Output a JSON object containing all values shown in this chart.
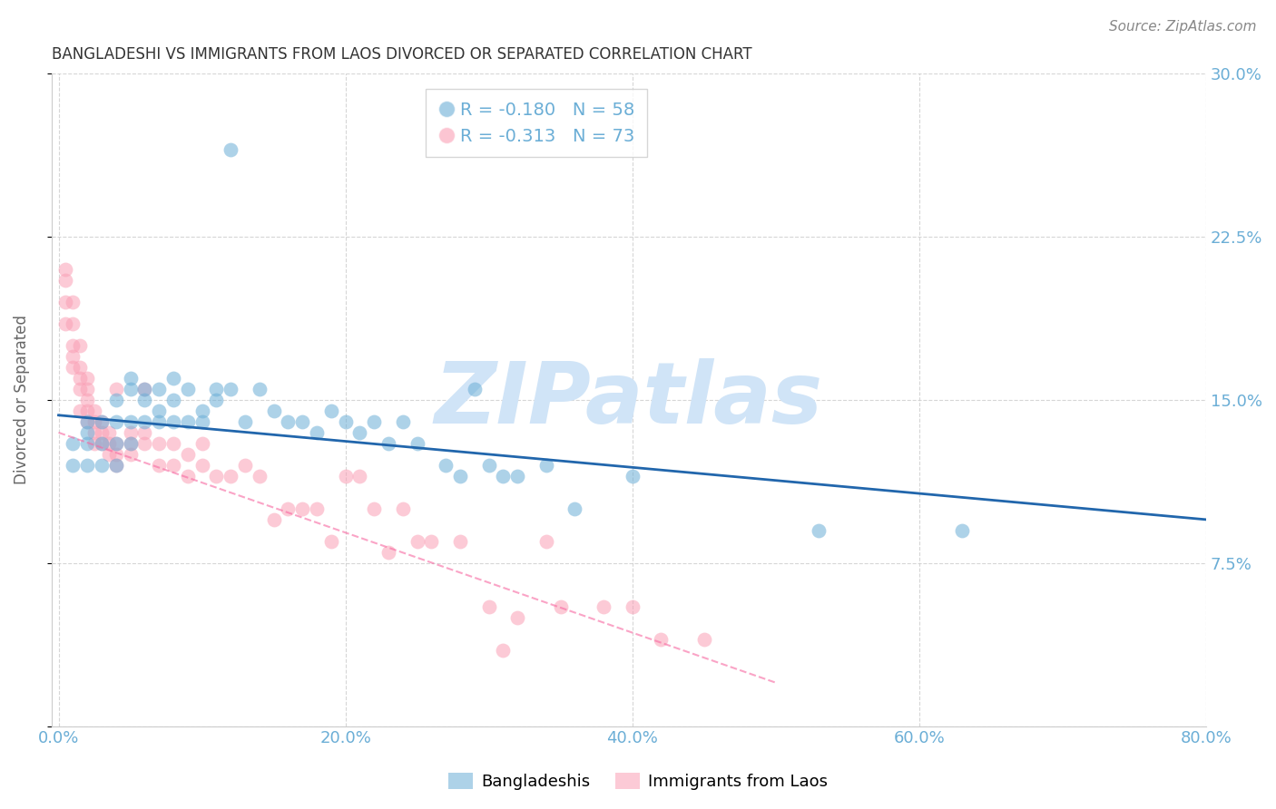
{
  "title": "BANGLADESHI VS IMMIGRANTS FROM LAOS DIVORCED OR SEPARATED CORRELATION CHART",
  "source": "Source: ZipAtlas.com",
  "xlabel": "",
  "ylabel": "Divorced or Separated",
  "xlim": [
    0.0,
    0.8
  ],
  "ylim": [
    0.0,
    0.3
  ],
  "yticks": [
    0.0,
    0.075,
    0.15,
    0.225,
    0.3
  ],
  "ytick_labels": [
    "",
    "7.5%",
    "15.0%",
    "22.5%",
    "30.0%"
  ],
  "xticks": [
    0.0,
    0.2,
    0.4,
    0.6,
    0.8
  ],
  "xtick_labels": [
    "0.0%",
    "20.0%",
    "40.0%",
    "60.0%",
    "80.0%"
  ],
  "background_color": "#ffffff",
  "grid_color": "#cccccc",
  "watermark": "ZIPatlas",
  "watermark_color": "#d0e4f7",
  "blue_color": "#6baed6",
  "pink_color": "#fa9fb5",
  "blue_line_color": "#2166ac",
  "pink_line_color": "#f768a1",
  "pink_line_style": "--",
  "axis_label_color": "#6baed6",
  "R_blue": -0.18,
  "N_blue": 58,
  "R_pink": -0.313,
  "N_pink": 73,
  "blue_scatter_x": [
    0.01,
    0.01,
    0.02,
    0.02,
    0.02,
    0.02,
    0.03,
    0.03,
    0.03,
    0.04,
    0.04,
    0.04,
    0.04,
    0.05,
    0.05,
    0.05,
    0.05,
    0.06,
    0.06,
    0.06,
    0.07,
    0.07,
    0.07,
    0.08,
    0.08,
    0.08,
    0.09,
    0.09,
    0.1,
    0.1,
    0.11,
    0.11,
    0.12,
    0.13,
    0.14,
    0.15,
    0.16,
    0.17,
    0.18,
    0.19,
    0.2,
    0.21,
    0.22,
    0.23,
    0.24,
    0.25,
    0.27,
    0.28,
    0.3,
    0.31,
    0.32,
    0.34,
    0.36,
    0.4,
    0.53,
    0.63,
    0.29,
    0.12
  ],
  "blue_scatter_y": [
    0.13,
    0.12,
    0.14,
    0.135,
    0.12,
    0.13,
    0.14,
    0.13,
    0.12,
    0.15,
    0.14,
    0.13,
    0.12,
    0.16,
    0.155,
    0.14,
    0.13,
    0.155,
    0.15,
    0.14,
    0.155,
    0.145,
    0.14,
    0.15,
    0.14,
    0.16,
    0.14,
    0.155,
    0.145,
    0.14,
    0.155,
    0.15,
    0.155,
    0.14,
    0.155,
    0.145,
    0.14,
    0.14,
    0.135,
    0.145,
    0.14,
    0.135,
    0.14,
    0.13,
    0.14,
    0.13,
    0.12,
    0.115,
    0.12,
    0.115,
    0.115,
    0.12,
    0.1,
    0.115,
    0.09,
    0.09,
    0.155,
    0.265
  ],
  "pink_scatter_x": [
    0.005,
    0.005,
    0.005,
    0.005,
    0.01,
    0.01,
    0.01,
    0.01,
    0.01,
    0.015,
    0.015,
    0.015,
    0.015,
    0.015,
    0.02,
    0.02,
    0.02,
    0.02,
    0.02,
    0.025,
    0.025,
    0.025,
    0.025,
    0.03,
    0.03,
    0.03,
    0.035,
    0.035,
    0.035,
    0.04,
    0.04,
    0.04,
    0.04,
    0.05,
    0.05,
    0.05,
    0.06,
    0.06,
    0.06,
    0.07,
    0.07,
    0.08,
    0.08,
    0.09,
    0.09,
    0.1,
    0.1,
    0.11,
    0.12,
    0.13,
    0.14,
    0.15,
    0.16,
    0.17,
    0.18,
    0.19,
    0.2,
    0.21,
    0.22,
    0.23,
    0.24,
    0.25,
    0.26,
    0.28,
    0.3,
    0.31,
    0.32,
    0.34,
    0.35,
    0.38,
    0.4,
    0.42,
    0.45
  ],
  "pink_scatter_y": [
    0.21,
    0.205,
    0.195,
    0.185,
    0.195,
    0.185,
    0.175,
    0.17,
    0.165,
    0.175,
    0.165,
    0.16,
    0.155,
    0.145,
    0.16,
    0.155,
    0.15,
    0.145,
    0.14,
    0.145,
    0.14,
    0.135,
    0.13,
    0.14,
    0.135,
    0.13,
    0.135,
    0.13,
    0.125,
    0.13,
    0.125,
    0.12,
    0.155,
    0.135,
    0.13,
    0.125,
    0.135,
    0.13,
    0.155,
    0.13,
    0.12,
    0.13,
    0.12,
    0.125,
    0.115,
    0.12,
    0.13,
    0.115,
    0.115,
    0.12,
    0.115,
    0.095,
    0.1,
    0.1,
    0.1,
    0.085,
    0.115,
    0.115,
    0.1,
    0.08,
    0.1,
    0.085,
    0.085,
    0.085,
    0.055,
    0.035,
    0.05,
    0.085,
    0.055,
    0.055,
    0.055,
    0.04,
    0.04
  ],
  "blue_line_x0": 0.0,
  "blue_line_x1": 0.8,
  "blue_line_y0": 0.143,
  "blue_line_y1": 0.095,
  "pink_line_x0": 0.0,
  "pink_line_x1": 0.5,
  "pink_line_y0": 0.135,
  "pink_line_y1": 0.02
}
